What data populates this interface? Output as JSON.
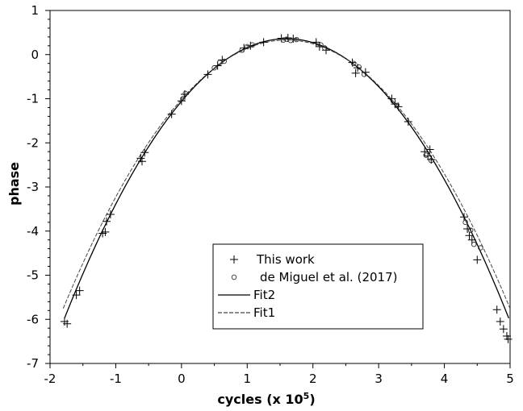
{
  "chart_data": {
    "type": "scatter",
    "title": "",
    "xlabel": "cycles (x 10",
    "xlabel_sup": "5",
    "xlabel_end": ")",
    "ylabel": "phase",
    "xlim": [
      -2,
      5
    ],
    "ylim": [
      -7,
      1
    ],
    "x_ticks": [
      "-2",
      "-1",
      "0",
      "1",
      "2",
      "3",
      "4",
      "5"
    ],
    "y_ticks": [
      "-7",
      "-6",
      "-5",
      "-4",
      "-3",
      "-2",
      "-1",
      "0",
      "1"
    ],
    "grid": false,
    "legend_position": "lower-center",
    "series": [
      {
        "name": "This work",
        "marker": "plus",
        "points": [
          [
            -1.78,
            -6.05
          ],
          [
            -1.74,
            -6.1
          ],
          [
            -1.55,
            -5.35
          ],
          [
            -1.6,
            -5.45
          ],
          [
            -1.2,
            -4.05
          ],
          [
            -1.16,
            -4.02
          ],
          [
            -1.14,
            -3.78
          ],
          [
            -1.08,
            -3.62
          ],
          [
            -0.62,
            -2.35
          ],
          [
            -0.56,
            -2.22
          ],
          [
            -0.6,
            -2.42
          ],
          [
            -0.15,
            -1.35
          ],
          [
            0.0,
            -1.05
          ],
          [
            0.05,
            -0.9
          ],
          [
            0.4,
            -0.45
          ],
          [
            0.55,
            -0.25
          ],
          [
            0.62,
            -0.12
          ],
          [
            0.95,
            0.15
          ],
          [
            1.05,
            0.2
          ],
          [
            1.25,
            0.28
          ],
          [
            1.52,
            0.37
          ],
          [
            1.62,
            0.38
          ],
          [
            1.7,
            0.36
          ],
          [
            2.05,
            0.28
          ],
          [
            2.1,
            0.18
          ],
          [
            2.2,
            0.1
          ],
          [
            2.6,
            -0.18
          ],
          [
            2.65,
            -0.42
          ],
          [
            2.68,
            -0.3
          ],
          [
            2.8,
            -0.4
          ],
          [
            3.2,
            -1.0
          ],
          [
            3.25,
            -1.12
          ],
          [
            3.3,
            -1.18
          ],
          [
            3.45,
            -1.52
          ],
          [
            3.7,
            -2.2
          ],
          [
            3.75,
            -2.3
          ],
          [
            3.78,
            -2.15
          ],
          [
            3.8,
            -2.38
          ],
          [
            4.3,
            -3.68
          ],
          [
            4.35,
            -3.95
          ],
          [
            4.38,
            -4.1
          ],
          [
            4.42,
            -4.2
          ],
          [
            4.5,
            -4.65
          ],
          [
            4.8,
            -5.78
          ],
          [
            4.85,
            -6.05
          ],
          [
            4.9,
            -6.22
          ],
          [
            4.95,
            -6.38
          ],
          [
            4.97,
            -6.45
          ]
        ]
      },
      {
        "name": "de Miguel et al. (2017)",
        "marker": "circle",
        "points": [
          [
            0.02,
            -1.0
          ],
          [
            0.06,
            -0.88
          ],
          [
            0.5,
            -0.3
          ],
          [
            0.58,
            -0.18
          ],
          [
            0.65,
            -0.15
          ],
          [
            0.92,
            0.1
          ],
          [
            1.0,
            0.18
          ],
          [
            1.08,
            0.22
          ],
          [
            1.55,
            0.33
          ],
          [
            1.6,
            0.35
          ],
          [
            1.66,
            0.32
          ],
          [
            1.75,
            0.34
          ],
          [
            2.12,
            0.22
          ],
          [
            2.18,
            0.15
          ],
          [
            2.62,
            -0.2
          ],
          [
            2.7,
            -0.28
          ],
          [
            2.78,
            -0.45
          ],
          [
            3.22,
            -1.05
          ],
          [
            3.28,
            -1.15
          ],
          [
            3.72,
            -2.28
          ],
          [
            3.8,
            -2.4
          ],
          [
            4.32,
            -3.8
          ],
          [
            4.4,
            -3.98
          ],
          [
            4.45,
            -4.3
          ],
          [
            4.55,
            -4.38
          ]
        ]
      }
    ],
    "fits": [
      {
        "name": "Fit2",
        "style": "solid",
        "vertex_x": 1.6,
        "vertex_y": 0.36,
        "curvature": 0.5545
      },
      {
        "name": "Fit1",
        "style": "dashed",
        "vertex_x": 1.6,
        "vertex_y": 0.33,
        "curvature": 0.5264
      }
    ]
  }
}
